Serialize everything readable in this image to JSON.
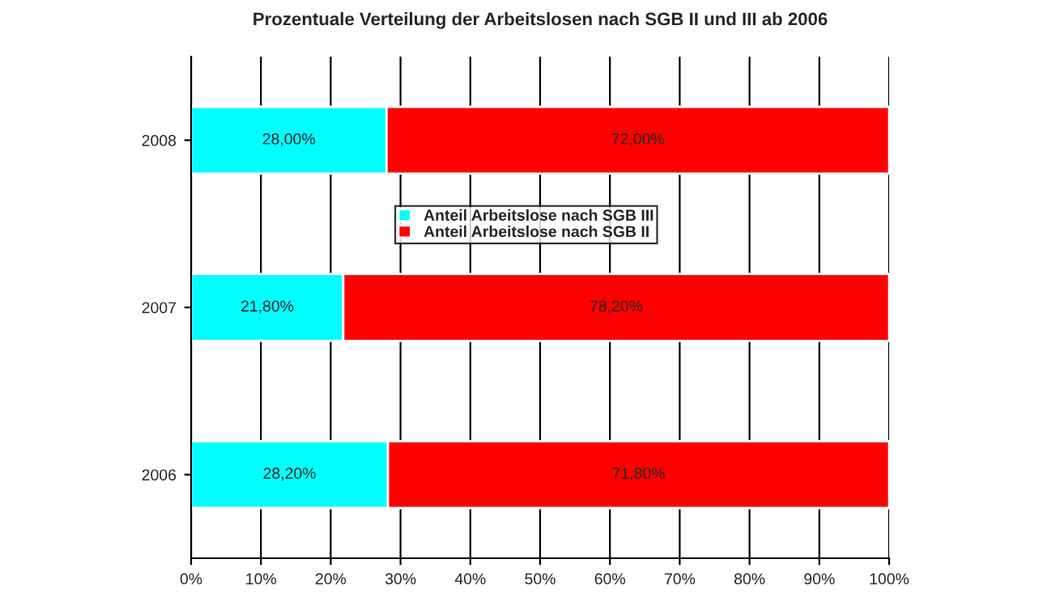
{
  "chart_data": {
    "type": "bar",
    "title": "Prozentuale Verteilung der Arbeitslosen nach SGB II und III ab 2006",
    "orientation": "horizontal",
    "stacked": true,
    "categories": [
      "2008",
      "2007",
      "2006"
    ],
    "series": [
      {
        "name": "Anteil Arbeitslose nach SGB III",
        "color": "#00ffff",
        "values": [
          28.0,
          21.8,
          28.2
        ],
        "value_labels": [
          "28,00%",
          "21,80%",
          "28,20%"
        ]
      },
      {
        "name": "Anteil Arbeitslose nach SGB II",
        "color": "#ff0000",
        "values": [
          72.0,
          78.2,
          71.8
        ],
        "value_labels": [
          "72,00%",
          "78,20%",
          "71,80%"
        ]
      }
    ],
    "xlim": [
      0,
      100
    ],
    "xticks": [
      {
        "value": 0,
        "label": "0%"
      },
      {
        "value": 10,
        "label": "10%"
      },
      {
        "value": 20,
        "label": "20%"
      },
      {
        "value": 30,
        "label": "30%"
      },
      {
        "value": 40,
        "label": "40%"
      },
      {
        "value": 50,
        "label": "50%"
      },
      {
        "value": 60,
        "label": "60%"
      },
      {
        "value": 70,
        "label": "70%"
      },
      {
        "value": 80,
        "label": "80%"
      },
      {
        "value": 90,
        "label": "90%"
      },
      {
        "value": 100,
        "label": "100%"
      }
    ],
    "grid": "x",
    "legend": "center"
  }
}
